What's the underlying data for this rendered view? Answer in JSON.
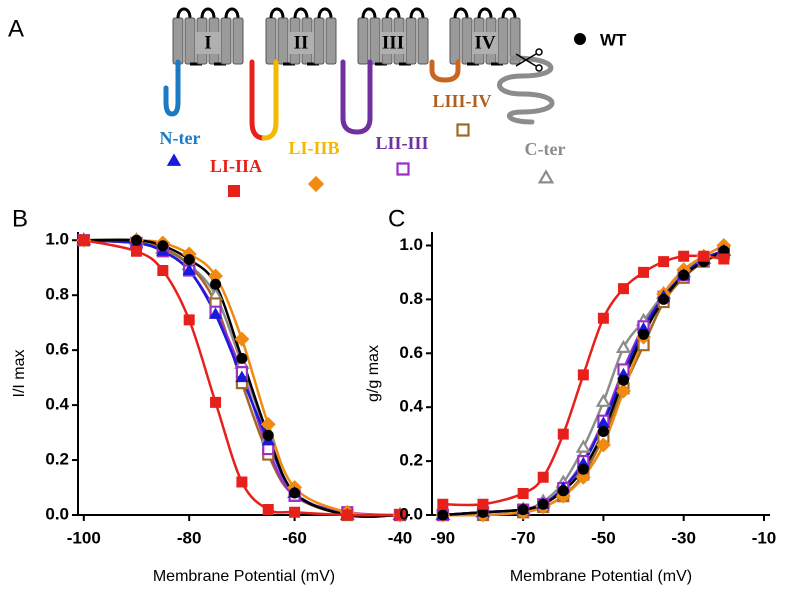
{
  "diagram": {
    "label": "A",
    "domains": [
      "I",
      "II",
      "III",
      "IV"
    ]
  },
  "chart_data": [
    {
      "type": "line",
      "panel_label": "B",
      "x_label": "Membrane Potential (mV)",
      "y_label": "I/I max",
      "x": [
        -100,
        -90,
        -85,
        -80,
        -75,
        -70,
        -65,
        -60,
        -50,
        -40
      ],
      "xlim": [
        -101.1,
        -38.1
      ],
      "xticks": [
        -100,
        -80,
        -60,
        -40
      ],
      "ylim": [
        0,
        1.03
      ],
      "yticks": [
        {
          "value": 0,
          "label": "0.0"
        },
        0.2,
        0.4,
        0.6,
        0.8,
        {
          "value": 1,
          "label": "1.0"
        }
      ],
      "series": [
        {
          "name": "WT",
          "color": "#000000",
          "marker": "circle",
          "filled": true,
          "values": [
            1,
            1,
            0.98,
            0.93,
            0.84,
            0.57,
            0.29,
            0.08,
            0,
            0
          ]
        },
        {
          "name": "N-ter",
          "color": "#1a1adc",
          "marker": "triangle",
          "filled": true,
          "values": [
            1,
            0.99,
            0.96,
            0.89,
            0.73,
            0.5,
            0.27,
            0.08,
            0,
            0
          ]
        },
        {
          "name": "LI-IIA",
          "color": "#e8201c",
          "marker": "square",
          "filled": true,
          "values": [
            1,
            0.96,
            0.89,
            0.71,
            0.41,
            0.12,
            0.02,
            0.01,
            0,
            0
          ]
        },
        {
          "name": "LI-IIB",
          "color": "#f08a10",
          "marker": "diamond",
          "filled": true,
          "values": [
            1,
            1,
            0.99,
            0.95,
            0.87,
            0.64,
            0.33,
            0.1,
            0.01,
            0
          ]
        },
        {
          "name": "LII-III",
          "color": "#9b2fc8",
          "marker": "square",
          "filled": false,
          "values": [
            1,
            0.99,
            0.96,
            0.89,
            0.74,
            0.52,
            0.24,
            0.07,
            0.01,
            0
          ]
        },
        {
          "name": "LIII-IV",
          "color": "#a0692a",
          "marker": "square",
          "filled": false,
          "values": [
            1,
            0.99,
            0.97,
            0.91,
            0.77,
            0.48,
            0.22,
            0.07,
            0,
            0
          ]
        },
        {
          "name": "C-ter",
          "color": "#8c8c8c",
          "marker": "triangle",
          "filled": false,
          "values": [
            1,
            1,
            0.97,
            0.91,
            0.8,
            0.55,
            0.28,
            0.08,
            0,
            0
          ]
        }
      ]
    },
    {
      "type": "line",
      "panel_label": "C",
      "x_label": "Membrane Potential (mV)",
      "y_label": "g/g max",
      "x": [
        -90,
        -80,
        -70,
        -65,
        -60,
        -55,
        -50,
        -45,
        -40,
        -35,
        -30,
        -25,
        -20
      ],
      "xlim": [
        -92.7,
        -8.5
      ],
      "xticks": [
        -90,
        -70,
        -50,
        -30,
        -10
      ],
      "ylim": [
        0,
        1.05
      ],
      "yticks": [
        {
          "value": 0,
          "label": "0.0"
        },
        0.2,
        0.4,
        0.6,
        0.8,
        {
          "value": 1,
          "label": "1.0"
        }
      ],
      "series": [
        {
          "name": "WT",
          "color": "#000000",
          "marker": "circle",
          "filled": true,
          "values": [
            0,
            0.01,
            0.02,
            0.04,
            0.09,
            0.17,
            0.31,
            0.5,
            0.67,
            0.8,
            0.89,
            0.94,
            0.98
          ]
        },
        {
          "name": "N-ter",
          "color": "#1a1adc",
          "marker": "triangle",
          "filled": true,
          "values": [
            0,
            0.01,
            0.02,
            0.04,
            0.1,
            0.19,
            0.34,
            0.52,
            0.69,
            0.81,
            0.89,
            0.95,
            0.98
          ]
        },
        {
          "name": "LI-IIA",
          "color": "#e8201c",
          "marker": "square",
          "filled": true,
          "values": [
            0.04,
            0.04,
            0.08,
            0.14,
            0.3,
            0.52,
            0.73,
            0.84,
            0.9,
            0.94,
            0.96,
            0.96,
            0.95
          ]
        },
        {
          "name": "LI-IIB",
          "color": "#f08a10",
          "marker": "diamond",
          "filled": true,
          "values": [
            0,
            0,
            0.01,
            0.03,
            0.07,
            0.14,
            0.26,
            0.46,
            0.66,
            0.82,
            0.91,
            0.96,
            1
          ]
        },
        {
          "name": "LII-III",
          "color": "#9b2fc8",
          "marker": "square",
          "filled": false,
          "values": [
            0,
            0.01,
            0.02,
            0.04,
            0.1,
            0.2,
            0.35,
            0.54,
            0.7,
            0.81,
            0.89,
            0.95,
            0.98
          ]
        },
        {
          "name": "LIII-IV",
          "color": "#a0692a",
          "marker": "square",
          "filled": false,
          "values": [
            0,
            0,
            0.01,
            0.03,
            0.07,
            0.15,
            0.29,
            0.47,
            0.63,
            0.79,
            0.88,
            0.94,
            0.97
          ]
        },
        {
          "name": "C-ter",
          "color": "#8c8c8c",
          "marker": "triangle",
          "filled": false,
          "values": [
            0,
            0.01,
            0.02,
            0.05,
            0.12,
            0.25,
            0.42,
            0.62,
            0.72,
            0.82,
            0.9,
            0.95,
            0.98
          ]
        }
      ]
    }
  ]
}
